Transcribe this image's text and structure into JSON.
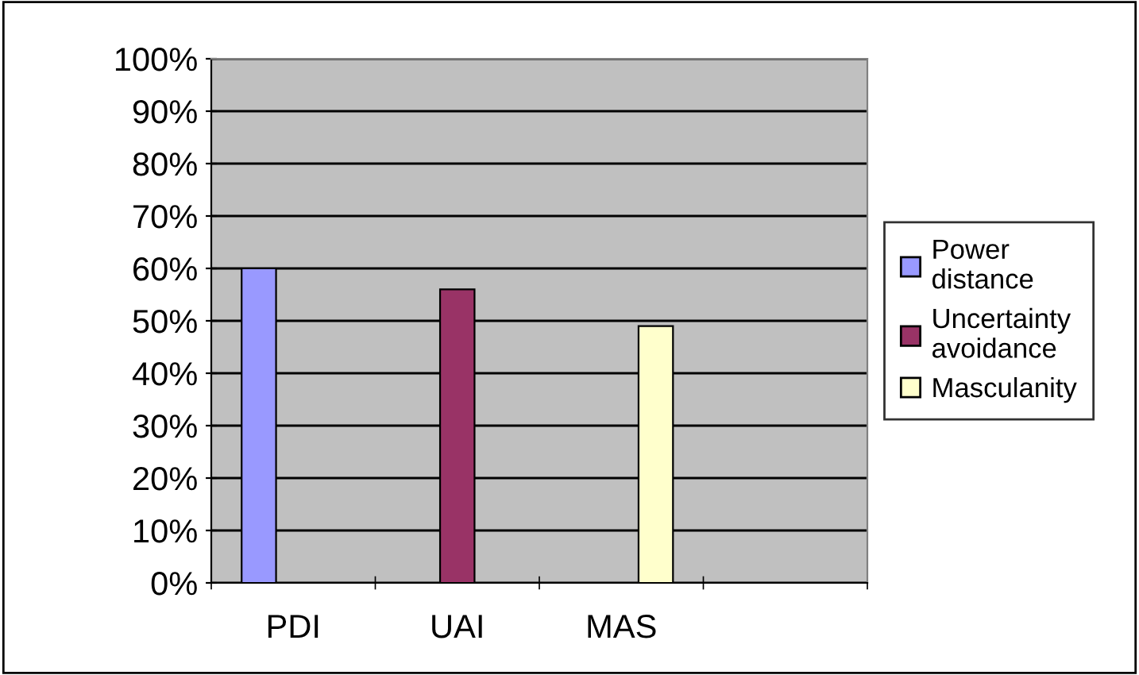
{
  "chart_data": {
    "type": "bar",
    "categories": [
      "PDI",
      "UAI",
      "MAS",
      null
    ],
    "series": [
      {
        "name": "Power\ndistance",
        "color": "#9999ff",
        "values": [
          60,
          null,
          null,
          null
        ]
      },
      {
        "name": "Uncertainty\navoidance",
        "color": "#993366",
        "values": [
          null,
          56,
          null,
          null
        ]
      },
      {
        "name": "Masculanity",
        "color": "#ffffcc",
        "values": [
          null,
          null,
          49,
          null
        ]
      }
    ],
    "ylim": [
      0,
      100
    ],
    "yticks": [
      {
        "value": 0,
        "label": "0%"
      },
      {
        "value": 10,
        "label": "10%"
      },
      {
        "value": 20,
        "label": "20%"
      },
      {
        "value": 30,
        "label": "30%"
      },
      {
        "value": 40,
        "label": "40%"
      },
      {
        "value": 50,
        "label": "50%"
      },
      {
        "value": 60,
        "label": "60%"
      },
      {
        "value": 70,
        "label": "70%"
      },
      {
        "value": 80,
        "label": "80%"
      },
      {
        "value": 90,
        "label": "90%"
      },
      {
        "value": 100,
        "label": "100%"
      }
    ],
    "grid": "y",
    "legend": "right"
  }
}
